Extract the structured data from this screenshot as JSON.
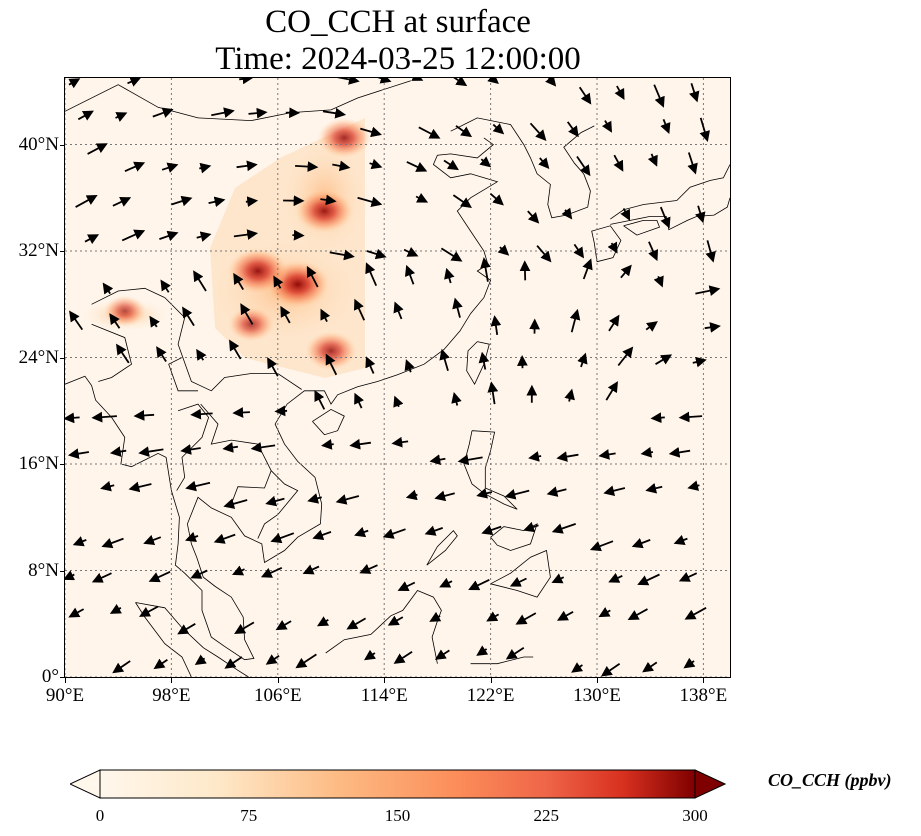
{
  "title": {
    "line1": "CO_CCH at surface",
    "line2": "Time: 2024-03-25 12:00:00"
  },
  "map": {
    "lon_range": [
      90,
      140
    ],
    "lat_range": [
      0,
      45
    ],
    "background_color": "#fff5eb",
    "gridlines": "dotted"
  },
  "axes": {
    "lat_ticks": [
      {
        "value": 0,
        "label": "0°"
      },
      {
        "value": 8,
        "label": "8°N"
      },
      {
        "value": 16,
        "label": "16°N"
      },
      {
        "value": 24,
        "label": "24°N"
      },
      {
        "value": 32,
        "label": "32°N"
      },
      {
        "value": 40,
        "label": "40°N"
      }
    ],
    "lon_ticks": [
      {
        "value": 90,
        "label": "90°E"
      },
      {
        "value": 98,
        "label": "98°E"
      },
      {
        "value": 106,
        "label": "106°E"
      },
      {
        "value": 114,
        "label": "114°E"
      },
      {
        "value": 122,
        "label": "122°E"
      },
      {
        "value": 130,
        "label": "130°E"
      },
      {
        "value": 138,
        "label": "138°E"
      }
    ]
  },
  "colorbar": {
    "label": "CO_CCH (ppbv)",
    "min": 0,
    "max": 300,
    "ticks": [
      "0",
      "75",
      "150",
      "225",
      "300"
    ],
    "colormap": "OrRd",
    "extend": "both"
  },
  "concentration_hotspots": [
    {
      "lon": 107.5,
      "lat": 29.5,
      "value": 300
    },
    {
      "lon": 104.5,
      "lat": 30.5,
      "value": 280
    },
    {
      "lon": 109.5,
      "lat": 35.0,
      "value": 260
    },
    {
      "lon": 111.0,
      "lat": 40.5,
      "value": 230
    },
    {
      "lon": 110.0,
      "lat": 24.5,
      "value": 220
    },
    {
      "lon": 104.0,
      "lat": 26.5,
      "value": 180
    },
    {
      "lon": 94.5,
      "lat": 27.5,
      "value": 150
    }
  ]
}
